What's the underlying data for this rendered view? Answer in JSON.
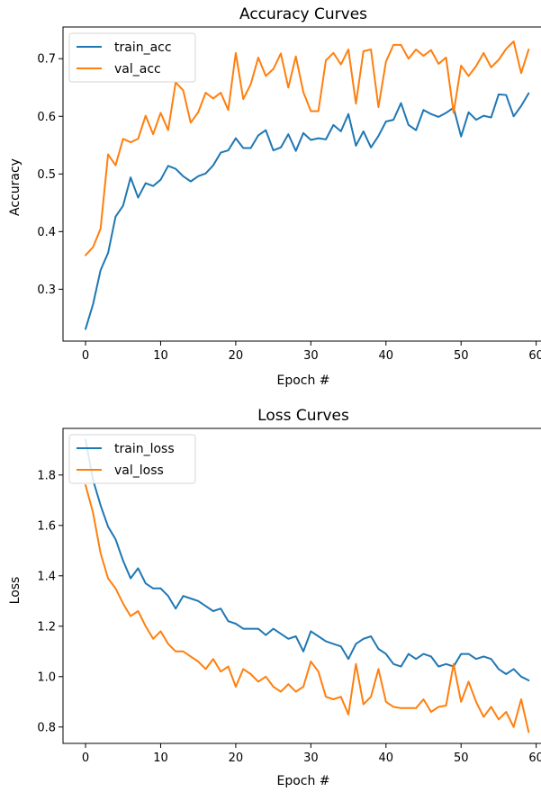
{
  "chart_data": [
    {
      "type": "line",
      "title": "Accuracy Curves",
      "xlabel": "Epoch #",
      "ylabel": "Accuracy",
      "xlim": [
        -3,
        61
      ],
      "ylim": [
        0.21,
        0.755
      ],
      "xticks": [
        0,
        10,
        20,
        30,
        40,
        50,
        60
      ],
      "yticks": [
        0.3,
        0.4,
        0.5,
        0.6,
        0.7
      ],
      "xtick_labels": [
        "0",
        "10",
        "20",
        "30",
        "40",
        "50",
        "60"
      ],
      "ytick_labels": [
        "0.3",
        "0.4",
        "0.5",
        "0.6",
        "0.7"
      ],
      "grid": false,
      "legend_position": "top-left",
      "x": [
        0,
        1,
        2,
        3,
        4,
        5,
        6,
        7,
        8,
        9,
        10,
        11,
        12,
        13,
        14,
        15,
        16,
        17,
        18,
        19,
        20,
        21,
        22,
        23,
        24,
        25,
        26,
        27,
        28,
        29,
        30,
        31,
        32,
        33,
        34,
        35,
        36,
        37,
        38,
        39,
        40,
        41,
        42,
        43,
        44,
        45,
        46,
        47,
        48,
        49,
        50,
        51,
        52,
        53,
        54,
        55,
        56,
        57,
        58,
        59
      ],
      "series": [
        {
          "name": "train_acc",
          "color": "#1f77b4",
          "values": [
            0.231,
            0.274,
            0.333,
            0.363,
            0.426,
            0.445,
            0.494,
            0.459,
            0.484,
            0.479,
            0.49,
            0.514,
            0.509,
            0.496,
            0.487,
            0.496,
            0.501,
            0.515,
            0.537,
            0.541,
            0.562,
            0.545,
            0.545,
            0.567,
            0.576,
            0.541,
            0.546,
            0.569,
            0.54,
            0.571,
            0.559,
            0.562,
            0.56,
            0.585,
            0.574,
            0.604,
            0.549,
            0.574,
            0.546,
            0.566,
            0.591,
            0.594,
            0.623,
            0.585,
            0.576,
            0.611,
            0.604,
            0.599,
            0.606,
            0.615,
            0.565,
            0.607,
            0.594,
            0.601,
            0.598,
            0.638,
            0.637,
            0.6,
            0.618,
            0.64
          ]
        },
        {
          "name": "val_acc",
          "color": "#ff7f0e",
          "values": [
            0.359,
            0.373,
            0.405,
            0.534,
            0.515,
            0.561,
            0.555,
            0.561,
            0.601,
            0.569,
            0.606,
            0.576,
            0.659,
            0.645,
            0.589,
            0.607,
            0.641,
            0.631,
            0.641,
            0.611,
            0.71,
            0.63,
            0.656,
            0.702,
            0.67,
            0.682,
            0.709,
            0.65,
            0.704,
            0.642,
            0.609,
            0.609,
            0.697,
            0.71,
            0.69,
            0.716,
            0.622,
            0.713,
            0.716,
            0.616,
            0.695,
            0.724,
            0.724,
            0.7,
            0.716,
            0.705,
            0.715,
            0.691,
            0.702,
            0.606,
            0.688,
            0.67,
            0.687,
            0.71,
            0.685,
            0.698,
            0.717,
            0.73,
            0.675,
            0.716
          ]
        }
      ]
    },
    {
      "type": "line",
      "title": "Loss Curves",
      "xlabel": "Epoch #",
      "ylabel": "Loss",
      "xlim": [
        -3,
        61
      ],
      "ylim": [
        0.735,
        1.985
      ],
      "xticks": [
        0,
        10,
        20,
        30,
        40,
        50,
        60
      ],
      "yticks": [
        0.8,
        1.0,
        1.2,
        1.4,
        1.6,
        1.8
      ],
      "xtick_labels": [
        "0",
        "10",
        "20",
        "30",
        "40",
        "50",
        "60"
      ],
      "ytick_labels": [
        "0.8",
        "1.0",
        "1.2",
        "1.4",
        "1.6",
        "1.8"
      ],
      "grid": false,
      "legend_position": "top-left",
      "x": [
        0,
        1,
        2,
        3,
        4,
        5,
        6,
        7,
        8,
        9,
        10,
        11,
        12,
        13,
        14,
        15,
        16,
        17,
        18,
        19,
        20,
        21,
        22,
        23,
        24,
        25,
        26,
        27,
        28,
        29,
        30,
        31,
        32,
        33,
        34,
        35,
        36,
        37,
        38,
        39,
        40,
        41,
        42,
        43,
        44,
        45,
        46,
        47,
        48,
        49,
        50,
        51,
        52,
        53,
        54,
        55,
        56,
        57,
        58,
        59
      ],
      "series": [
        {
          "name": "train_loss",
          "color": "#1f77b4",
          "values": [
            1.94,
            1.78,
            1.68,
            1.595,
            1.545,
            1.46,
            1.39,
            1.43,
            1.37,
            1.35,
            1.35,
            1.32,
            1.27,
            1.32,
            1.31,
            1.3,
            1.28,
            1.26,
            1.27,
            1.22,
            1.21,
            1.19,
            1.19,
            1.19,
            1.165,
            1.19,
            1.17,
            1.15,
            1.16,
            1.1,
            1.18,
            1.16,
            1.14,
            1.13,
            1.12,
            1.07,
            1.13,
            1.15,
            1.16,
            1.11,
            1.09,
            1.05,
            1.04,
            1.09,
            1.07,
            1.09,
            1.08,
            1.04,
            1.05,
            1.04,
            1.09,
            1.09,
            1.07,
            1.08,
            1.07,
            1.03,
            1.01,
            1.03,
            1.0,
            0.985
          ]
        },
        {
          "name": "val_loss",
          "color": "#ff7f0e",
          "values": [
            1.76,
            1.65,
            1.49,
            1.39,
            1.35,
            1.29,
            1.24,
            1.26,
            1.2,
            1.15,
            1.18,
            1.13,
            1.1,
            1.1,
            1.08,
            1.06,
            1.03,
            1.07,
            1.02,
            1.04,
            0.96,
            1.03,
            1.01,
            0.98,
            1.0,
            0.96,
            0.94,
            0.97,
            0.94,
            0.96,
            1.06,
            1.02,
            0.92,
            0.91,
            0.92,
            0.85,
            1.05,
            0.89,
            0.92,
            1.03,
            0.9,
            0.88,
            0.875,
            0.875,
            0.875,
            0.91,
            0.86,
            0.88,
            0.885,
            1.05,
            0.9,
            0.98,
            0.9,
            0.84,
            0.88,
            0.83,
            0.86,
            0.8,
            0.91,
            0.78
          ]
        }
      ]
    }
  ]
}
